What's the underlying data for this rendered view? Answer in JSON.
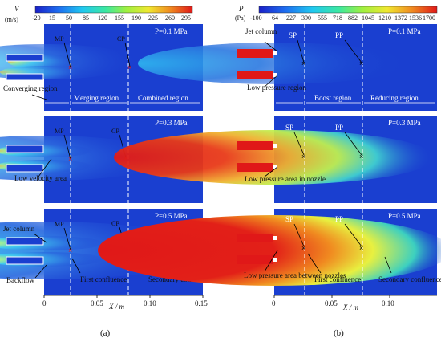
{
  "panel_a": {
    "colorbar": {
      "label_symbol": "V",
      "label_unit": "(m/s)",
      "ticks": [
        "-20",
        "15",
        "50",
        "85",
        "120",
        "155",
        "190",
        "225",
        "260",
        "295"
      ]
    },
    "subplots": [
      {
        "pressure": "P=0.1 MPa",
        "points": [
          "MP",
          "CP"
        ],
        "left_label": "Converging region",
        "regions": [
          "Merging region",
          "Combined region"
        ]
      },
      {
        "pressure": "P=0.3 MPa",
        "points": [
          "MP",
          "CP"
        ],
        "left_label": "Low velocity area"
      },
      {
        "pressure": "P=0.5 MPa",
        "points": [
          "MP",
          "CP"
        ],
        "left_labels": [
          "Jet column",
          "Backflow"
        ],
        "confluences": [
          "First confluence",
          "Secondary confluence"
        ]
      }
    ],
    "x_axis": {
      "label": "X / m",
      "ticks": [
        "0",
        "0.05",
        "0.10",
        "0.15"
      ]
    },
    "caption": "(a)"
  },
  "panel_b": {
    "colorbar": {
      "label_symbol": "P",
      "label_unit": "(Pa)",
      "ticks": [
        "-100",
        "64",
        "227",
        "390",
        "555",
        "718",
        "882",
        "1045",
        "1210",
        "1372",
        "1536",
        "1700"
      ]
    },
    "subplots": [
      {
        "pressure": "P=0.1 MPa",
        "points": [
          "SP",
          "PP"
        ],
        "left_labels": [
          "Jet column",
          "Low pressure region"
        ],
        "regions": [
          "Boost region",
          "Reducing region"
        ]
      },
      {
        "pressure": "P=0.3 MPa",
        "points": [
          "SP",
          "PP"
        ],
        "left_label": "Low pressure area in nozzle"
      },
      {
        "pressure": "P=0.5 MPa",
        "points": [
          "SP",
          "PP"
        ],
        "left_label": "Low pressure area between nozzles",
        "confluences": [
          "First confluence",
          "Secondary confluence"
        ]
      }
    ],
    "x_axis": {
      "label": "X / m",
      "ticks": [
        "0",
        "0.05",
        "0.10"
      ]
    },
    "caption": "(b)"
  },
  "colors": {
    "field_blue": "#1a3fd0",
    "jet_red": "#e01818",
    "field_red": "#d81a12"
  }
}
